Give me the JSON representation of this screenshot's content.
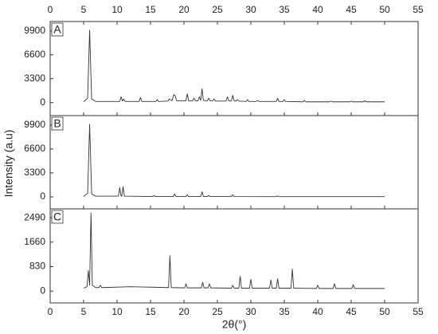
{
  "chart_data": [
    {
      "type": "line",
      "panel_label": "A",
      "ylabel": "Intensity (a.u)",
      "xlim": [
        0,
        55
      ],
      "xticks": [
        0,
        5,
        10,
        15,
        20,
        25,
        30,
        35,
        40,
        45,
        50,
        55
      ],
      "ylim": [
        -1800,
        11200
      ],
      "yticks": [
        0,
        3300,
        6600,
        9900
      ],
      "series": [
        {
          "color": "#333333",
          "x": [
            5.0,
            5.6,
            5.9,
            6.2,
            6.8,
            10.4,
            10.6,
            10.8,
            11.0,
            11.2,
            13.3,
            13.5,
            13.7,
            15.8,
            16.0,
            16.2,
            17.6,
            17.8,
            18.2,
            18.5,
            18.7,
            18.9,
            20.3,
            20.5,
            20.7,
            21.3,
            21.5,
            21.7,
            22.1,
            22.3,
            22.5,
            22.7,
            22.9,
            23.5,
            23.7,
            23.9,
            24.3,
            24.5,
            24.7,
            26.3,
            26.5,
            26.7,
            27.1,
            27.3,
            27.5,
            27.8,
            28.0,
            28.2,
            29.3,
            29.5,
            29.7,
            30.8,
            31.0,
            31.2,
            33.8,
            34.0,
            34.2,
            34.8,
            35.0,
            35.2,
            37.8,
            38.0,
            38.2,
            41.8,
            42.0,
            42.2,
            44.8,
            45.0,
            45.2,
            46.8,
            47.0,
            47.2,
            50.0
          ],
          "values": [
            100,
            600,
            10000,
            500,
            150,
            150,
            800,
            200,
            500,
            150,
            150,
            700,
            150,
            150,
            400,
            150,
            200,
            500,
            250,
            1100,
            900,
            250,
            250,
            1200,
            250,
            250,
            600,
            250,
            250,
            800,
            300,
            1900,
            300,
            250,
            600,
            250,
            250,
            500,
            200,
            200,
            800,
            250,
            250,
            1000,
            250,
            200,
            400,
            200,
            150,
            400,
            150,
            150,
            300,
            150,
            150,
            600,
            150,
            150,
            400,
            150,
            100,
            300,
            100,
            100,
            200,
            100,
            100,
            200,
            100,
            100,
            250,
            100,
            100
          ]
        }
      ]
    },
    {
      "type": "line",
      "panel_label": "B",
      "xlim": [
        0,
        55
      ],
      "xticks": [
        0,
        5,
        10,
        15,
        20,
        25,
        30,
        35,
        40,
        45,
        50,
        55
      ],
      "ylim": [
        -1650,
        11200
      ],
      "yticks": [
        0,
        3300,
        6600,
        9900
      ],
      "series": [
        {
          "color": "#333333",
          "x": [
            5.0,
            5.6,
            5.9,
            6.2,
            6.8,
            10.2,
            10.4,
            10.6,
            10.7,
            10.9,
            11.1,
            15.3,
            15.5,
            15.7,
            18.4,
            18.6,
            18.8,
            20.3,
            20.5,
            20.7,
            22.5,
            22.7,
            22.9,
            23.5,
            23.7,
            23.9,
            27.1,
            27.3,
            27.5,
            33.8,
            34.0,
            34.2,
            50.0
          ],
          "values": [
            50,
            500,
            10000,
            400,
            100,
            100,
            1300,
            100,
            100,
            1400,
            100,
            50,
            200,
            50,
            50,
            400,
            50,
            50,
            300,
            50,
            50,
            700,
            50,
            50,
            200,
            50,
            50,
            300,
            50,
            30,
            150,
            30,
            30
          ]
        }
      ]
    },
    {
      "type": "line",
      "panel_label": "C",
      "xlabel": "2θ(°)",
      "xlim": [
        0,
        55
      ],
      "xticks": [
        0,
        5,
        10,
        15,
        20,
        25,
        30,
        35,
        40,
        45,
        50,
        55
      ],
      "ylim": [
        -400,
        2790
      ],
      "yticks": [
        0,
        830,
        1660,
        2490
      ],
      "series": [
        {
          "color": "#333333",
          "x": [
            5.0,
            5.5,
            5.7,
            5.9,
            6.1,
            6.3,
            6.8,
            7.3,
            7.5,
            7.7,
            12.0,
            17.7,
            17.9,
            18.1,
            20.1,
            20.3,
            20.5,
            22.6,
            22.8,
            23.0,
            23.6,
            23.8,
            24.0,
            27.1,
            27.3,
            27.5,
            28.2,
            28.4,
            28.6,
            29.8,
            30.0,
            30.2,
            32.8,
            33.0,
            33.2,
            33.8,
            34.0,
            34.2,
            36.0,
            36.2,
            36.4,
            39.8,
            40.0,
            40.2,
            42.3,
            42.5,
            42.7,
            45.1,
            45.3,
            45.5,
            50.0
          ],
          "values": [
            100,
            150,
            700,
            200,
            2650,
            200,
            120,
            120,
            200,
            120,
            150,
            120,
            1200,
            120,
            110,
            250,
            110,
            110,
            300,
            110,
            110,
            250,
            110,
            100,
            200,
            100,
            100,
            500,
            100,
            100,
            400,
            100,
            100,
            380,
            100,
            100,
            420,
            100,
            100,
            750,
            100,
            90,
            200,
            90,
            90,
            250,
            90,
            90,
            220,
            90,
            90
          ]
        }
      ]
    }
  ]
}
